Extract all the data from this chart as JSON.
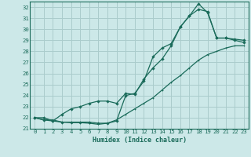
{
  "xlabel": "Humidex (Indice chaleur)",
  "bg_color": "#cce8e8",
  "grid_color": "#aacccc",
  "line_color": "#1a6b5a",
  "xlim": [
    -0.5,
    23.5
  ],
  "ylim": [
    21.0,
    32.5
  ],
  "yticks": [
    21,
    22,
    23,
    24,
    25,
    26,
    27,
    28,
    29,
    30,
    31,
    32
  ],
  "xticks": [
    0,
    1,
    2,
    3,
    4,
    5,
    6,
    7,
    8,
    9,
    10,
    11,
    12,
    13,
    14,
    15,
    16,
    17,
    18,
    19,
    20,
    21,
    22,
    23
  ],
  "line1_x": [
    0,
    1,
    2,
    3,
    4,
    5,
    6,
    7,
    8,
    9,
    10,
    11,
    12,
    13,
    14,
    15,
    16,
    17,
    18,
    19,
    20,
    21,
    22,
    23
  ],
  "line1_y": [
    22.0,
    21.8,
    21.8,
    21.6,
    21.55,
    21.55,
    21.5,
    21.4,
    21.5,
    21.8,
    22.3,
    22.8,
    23.3,
    23.8,
    24.5,
    25.2,
    25.8,
    26.5,
    27.2,
    27.7,
    28.0,
    28.3,
    28.5,
    28.5
  ],
  "line2_x": [
    0,
    1,
    2,
    3,
    4,
    5,
    6,
    7,
    8,
    9,
    10,
    11,
    12,
    13,
    14,
    15,
    16,
    17,
    18,
    19,
    20,
    21,
    22,
    23
  ],
  "line2_y": [
    22.0,
    21.8,
    21.7,
    21.6,
    21.6,
    21.6,
    21.6,
    21.5,
    21.5,
    21.7,
    24.0,
    24.2,
    25.3,
    27.5,
    28.3,
    28.7,
    30.2,
    31.2,
    32.3,
    31.5,
    29.2,
    29.2,
    29.1,
    29.0
  ],
  "line3_x": [
    0,
    1,
    2,
    3,
    4,
    5,
    6,
    7,
    8,
    9,
    10,
    11,
    12,
    13,
    14,
    15,
    16,
    17,
    18,
    19,
    20,
    21,
    22,
    23
  ],
  "line3_y": [
    22.0,
    22.0,
    21.7,
    22.3,
    22.8,
    23.0,
    23.3,
    23.5,
    23.5,
    23.3,
    24.2,
    24.1,
    25.5,
    26.5,
    27.3,
    28.5,
    30.2,
    31.2,
    31.8,
    31.6,
    29.2,
    29.2,
    29.0,
    28.8
  ]
}
